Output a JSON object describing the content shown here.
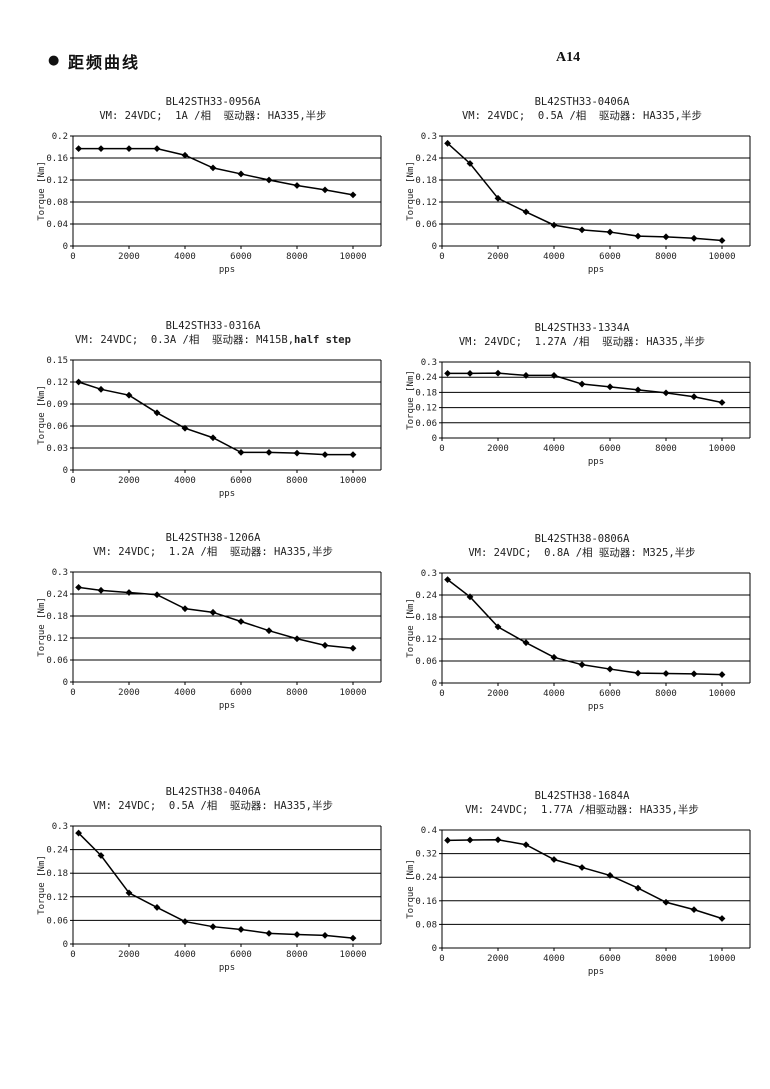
{
  "header": {
    "bullet": "●",
    "title": "距频曲线",
    "page_label": "A14"
  },
  "chart_data": [
    {
      "type": "line",
      "title": "BL42STH33-0956A",
      "subtitle": "VM: 24VDC;  1A /相  驱动器: HA335,半步",
      "subtitle_bold": "",
      "xlabel": "pps",
      "ylabel": "Torque  [Nm]",
      "xlim": [
        0,
        11000
      ],
      "ylim": [
        0,
        0.2
      ],
      "xticks": [
        0,
        2000,
        4000,
        6000,
        8000,
        10000
      ],
      "yticks": [
        0,
        0.04,
        0.08,
        0.12,
        0.16,
        0.2
      ],
      "grid": true,
      "marker": "diamond",
      "line_color": "#000000",
      "x": [
        200,
        1000,
        2000,
        3000,
        4000,
        5000,
        6000,
        7000,
        8000,
        9000,
        10000
      ],
      "y": [
        0.177,
        0.177,
        0.177,
        0.177,
        0.165,
        0.142,
        0.131,
        0.12,
        0.11,
        0.102,
        0.093
      ]
    },
    {
      "type": "line",
      "title": "BL42STH33-0406A",
      "subtitle": "VM: 24VDC;  0.5A /相  驱动器: HA335,半步",
      "subtitle_bold": "",
      "xlabel": "pps",
      "ylabel": "Torque  [Nm]",
      "xlim": [
        0,
        11000
      ],
      "ylim": [
        0,
        0.3
      ],
      "xticks": [
        0,
        2000,
        4000,
        6000,
        8000,
        10000
      ],
      "yticks": [
        0,
        0.06,
        0.12,
        0.18,
        0.24,
        0.3
      ],
      "grid": true,
      "marker": "diamond",
      "line_color": "#000000",
      "x": [
        200,
        1000,
        2000,
        3000,
        4000,
        5000,
        6000,
        7000,
        8000,
        9000,
        10000
      ],
      "y": [
        0.28,
        0.225,
        0.13,
        0.093,
        0.057,
        0.044,
        0.038,
        0.027,
        0.025,
        0.021,
        0.015
      ]
    },
    {
      "type": "line",
      "title": "BL42STH33-0316A",
      "subtitle": "VM: 24VDC;  0.3A /相  驱动器: M415B,",
      "subtitle_bold": "half step",
      "xlabel": "pps",
      "ylabel": "Torque  [Nm]",
      "xlim": [
        0,
        11000
      ],
      "ylim": [
        0,
        0.15
      ],
      "xticks": [
        0,
        2000,
        4000,
        6000,
        8000,
        10000
      ],
      "yticks": [
        0,
        0.03,
        0.06,
        0.09,
        0.12,
        0.15
      ],
      "grid": true,
      "marker": "diamond",
      "line_color": "#000000",
      "x": [
        200,
        1000,
        2000,
        3000,
        4000,
        5000,
        6000,
        7000,
        8000,
        9000,
        10000
      ],
      "y": [
        0.12,
        0.11,
        0.102,
        0.078,
        0.057,
        0.044,
        0.024,
        0.024,
        0.023,
        0.021,
        0.021
      ]
    },
    {
      "type": "line",
      "title": "BL42STH33-1334A",
      "subtitle": "VM: 24VDC;  1.27A /相  驱动器: HA335,半步",
      "subtitle_bold": "",
      "xlabel": "pps",
      "ylabel": "Torque  [Nm]",
      "xlim": [
        0,
        11000
      ],
      "ylim": [
        0,
        0.3
      ],
      "xticks": [
        0,
        2000,
        4000,
        6000,
        8000,
        10000
      ],
      "yticks": [
        0,
        0.06,
        0.12,
        0.18,
        0.24,
        0.3
      ],
      "grid": true,
      "marker": "diamond",
      "line_color": "#000000",
      "x": [
        200,
        1000,
        2000,
        3000,
        4000,
        5000,
        6000,
        7000,
        8000,
        9000,
        10000
      ],
      "y": [
        0.255,
        0.255,
        0.256,
        0.247,
        0.247,
        0.213,
        0.202,
        0.19,
        0.178,
        0.163,
        0.14
      ]
    },
    {
      "type": "line",
      "title": "BL42STH38-1206A",
      "subtitle": "VM: 24VDC;  1.2A /相  驱动器: HA335,半步",
      "subtitle_bold": "",
      "xlabel": "pps",
      "ylabel": "Torque  [Nm]",
      "xlim": [
        0,
        11000
      ],
      "ylim": [
        0,
        0.3
      ],
      "xticks": [
        0,
        2000,
        4000,
        6000,
        8000,
        10000
      ],
      "yticks": [
        0,
        0.06,
        0.12,
        0.18,
        0.24,
        0.3
      ],
      "grid": true,
      "marker": "diamond",
      "line_color": "#000000",
      "x": [
        200,
        1000,
        2000,
        3000,
        4000,
        5000,
        6000,
        7000,
        8000,
        9000,
        10000
      ],
      "y": [
        0.258,
        0.25,
        0.244,
        0.238,
        0.2,
        0.19,
        0.165,
        0.14,
        0.118,
        0.1,
        0.092
      ]
    },
    {
      "type": "line",
      "title": "BL42STH38-0806A",
      "subtitle": "VM: 24VDC;  0.8A /相 驱动器: M325,半步",
      "subtitle_bold": "",
      "xlabel": "pps",
      "ylabel": "Torque  [Nm]",
      "xlim": [
        0,
        11000
      ],
      "ylim": [
        0,
        0.3
      ],
      "xticks": [
        0,
        2000,
        4000,
        6000,
        8000,
        10000
      ],
      "yticks": [
        0,
        0.06,
        0.12,
        0.18,
        0.24,
        0.3
      ],
      "grid": true,
      "marker": "diamond",
      "line_color": "#000000",
      "x": [
        200,
        1000,
        2000,
        3000,
        4000,
        5000,
        6000,
        7000,
        8000,
        9000,
        10000
      ],
      "y": [
        0.282,
        0.235,
        0.153,
        0.11,
        0.07,
        0.05,
        0.038,
        0.027,
        0.026,
        0.025,
        0.023
      ]
    },
    {
      "type": "line",
      "title": "BL42STH38-0406A",
      "subtitle": "VM: 24VDC;  0.5A /相  驱动器: HA335,半步",
      "subtitle_bold": "",
      "xlabel": "pps",
      "ylabel": "Torque  [Nm]",
      "xlim": [
        0,
        11000
      ],
      "ylim": [
        0,
        0.3
      ],
      "xticks": [
        0,
        2000,
        4000,
        6000,
        8000,
        10000
      ],
      "yticks": [
        0,
        0.06,
        0.12,
        0.18,
        0.24,
        0.3
      ],
      "grid": true,
      "marker": "diamond",
      "line_color": "#000000",
      "x": [
        200,
        1000,
        2000,
        3000,
        4000,
        5000,
        6000,
        7000,
        8000,
        9000,
        10000
      ],
      "y": [
        0.282,
        0.225,
        0.13,
        0.093,
        0.057,
        0.044,
        0.037,
        0.027,
        0.024,
        0.022,
        0.015
      ]
    },
    {
      "type": "line",
      "title": "BL42STH38-1684A",
      "subtitle": "VM: 24VDC;  1.77A /相驱动器: HA335,半步",
      "subtitle_bold": "",
      "xlabel": "pps",
      "ylabel": "Torque  [Nm]",
      "xlim": [
        0,
        11000
      ],
      "ylim": [
        0,
        0.4
      ],
      "xticks": [
        0,
        2000,
        4000,
        6000,
        8000,
        10000
      ],
      "yticks": [
        0,
        0.08,
        0.16,
        0.24,
        0.32,
        0.4
      ],
      "grid": true,
      "marker": "diamond",
      "line_color": "#000000",
      "x": [
        200,
        1000,
        2000,
        3000,
        4000,
        5000,
        6000,
        7000,
        8000,
        9000,
        10000
      ],
      "y": [
        0.365,
        0.366,
        0.367,
        0.35,
        0.3,
        0.273,
        0.246,
        0.203,
        0.155,
        0.13,
        0.1
      ]
    }
  ]
}
